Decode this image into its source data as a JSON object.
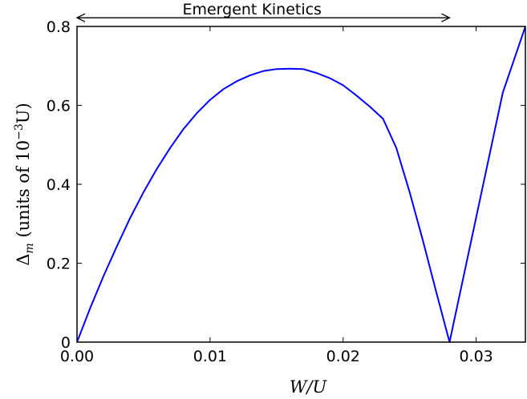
{
  "chart_data": {
    "type": "line",
    "title": "",
    "xlabel": "W/U",
    "ylabel": "Δ_m (units of 10⁻³U)",
    "ylabel_parts": {
      "symbol": "Δ",
      "subscript": "m",
      "text": " (units of 10",
      "exponent": "−3",
      "unit": "U)"
    },
    "xlim": [
      0.0,
      0.0337
    ],
    "ylim": [
      0.0,
      0.8
    ],
    "xticks": [
      {
        "value": 0.0,
        "label": "0.00"
      },
      {
        "value": 0.01,
        "label": "0.01"
      },
      {
        "value": 0.02,
        "label": "0.02"
      },
      {
        "value": 0.03,
        "label": "0.03"
      }
    ],
    "yticks": [
      {
        "value": 0.0,
        "label": "0"
      },
      {
        "value": 0.2,
        "label": "0.2"
      },
      {
        "value": 0.4,
        "label": "0.4"
      },
      {
        "value": 0.6,
        "label": "0.6"
      },
      {
        "value": 0.8,
        "label": "0.8"
      }
    ],
    "grid": false,
    "series": [
      {
        "color": "#0000ff",
        "x": [
          0.0,
          0.001,
          0.002,
          0.003,
          0.004,
          0.005,
          0.006,
          0.007,
          0.008,
          0.009,
          0.01,
          0.011,
          0.012,
          0.013,
          0.014,
          0.015,
          0.016,
          0.017,
          0.018,
          0.019,
          0.02,
          0.021,
          0.022,
          0.023,
          0.024,
          0.025,
          0.026,
          0.027,
          0.028,
          0.03,
          0.031,
          0.032,
          0.0337
        ],
        "y": [
          0.0,
          0.087,
          0.168,
          0.243,
          0.315,
          0.38,
          0.439,
          0.492,
          0.54,
          0.58,
          0.614,
          0.641,
          0.661,
          0.676,
          0.687,
          0.692,
          0.693,
          0.692,
          0.682,
          0.669,
          0.651,
          0.625,
          0.597,
          0.566,
          0.492,
          0.38,
          0.257,
          0.127,
          0.0,
          0.316,
          0.474,
          0.632,
          0.8
        ]
      }
    ],
    "annotations": [
      {
        "text": "Emergent Kinetics",
        "type": "double-arrow",
        "x_start": 0.0,
        "x_end": 0.028,
        "y": 0.822
      }
    ]
  }
}
